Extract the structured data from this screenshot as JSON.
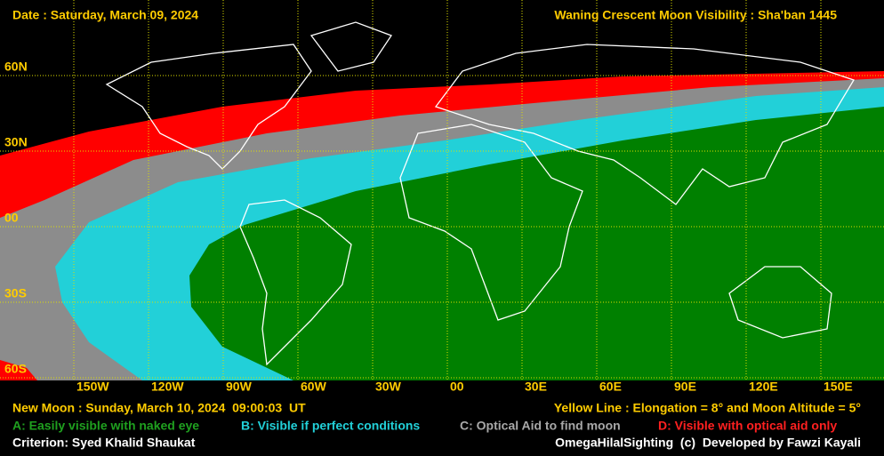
{
  "header": {
    "date": "Date : Saturday, March 09, 2024",
    "title": "Waning Crescent Moon Visibility : Sha'ban 1445"
  },
  "map": {
    "lat_labels": [
      "60N",
      "30N",
      "00",
      "30S",
      "60S"
    ],
    "lon_labels": [
      "150W",
      "120W",
      "90W",
      "60W",
      "30W",
      "00",
      "30E",
      "60E",
      "90E",
      "120E",
      "150E"
    ]
  },
  "footer": {
    "new_moon": "New Moon : Sunday, March 10, 2024  09:00:03  UT",
    "yellow_line": "Yellow Line : Elongation = 8° and Moon Altitude = 5°",
    "legend": [
      {
        "label": "A: Easily visible with naked eye",
        "color": "#1fa01f"
      },
      {
        "label": "B: Visible if perfect conditions",
        "color": "#22d0d8"
      },
      {
        "label": "C: Optical Aid to find moon",
        "color": "#a8a8a8"
      },
      {
        "label": "D: Visible with optical aid only",
        "color": "#ff2020"
      }
    ],
    "criterion": "Criterion: Syed Khalid Shaukat",
    "credit": "OmegaHilalSighting  (c)  Developed by Fawzi Kayali"
  }
}
